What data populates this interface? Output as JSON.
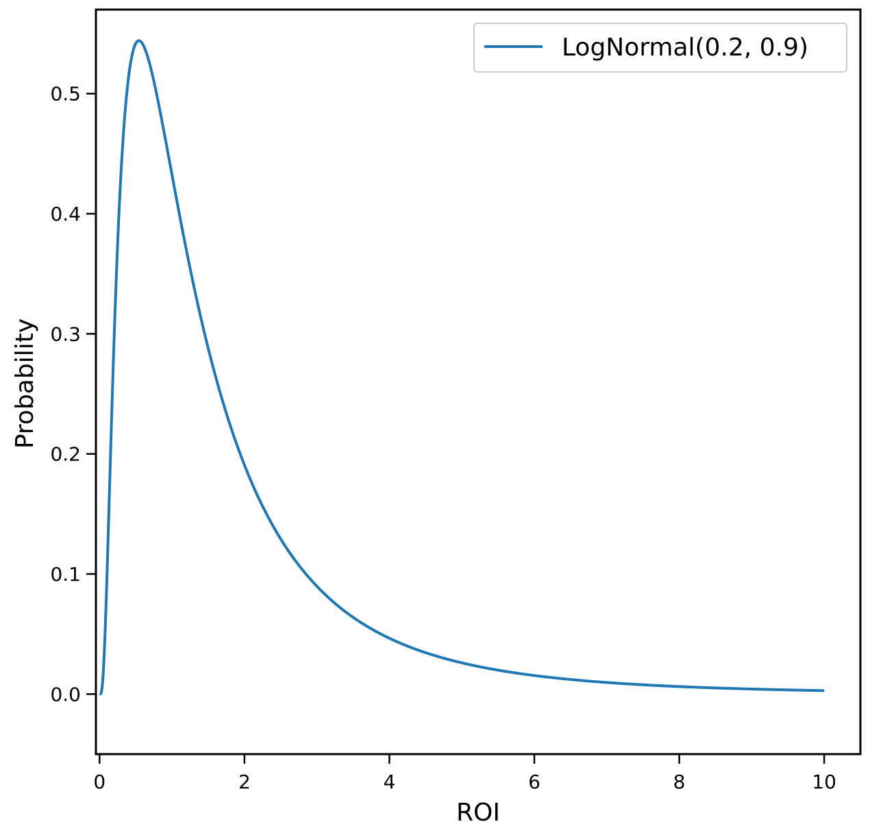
{
  "chart_data": {
    "type": "line",
    "title": "",
    "xlabel": "ROI",
    "ylabel": "Probability",
    "xlim": [
      -0.05,
      10.5
    ],
    "ylim": [
      -0.05,
      0.57
    ],
    "xticks": [
      0,
      2,
      4,
      6,
      8,
      10
    ],
    "xtick_labels": [
      "0",
      "2",
      "4",
      "6",
      "8",
      "10"
    ],
    "yticks": [
      0.0,
      0.1,
      0.2,
      0.3,
      0.4,
      0.5
    ],
    "ytick_labels": [
      "0.0",
      "0.1",
      "0.2",
      "0.3",
      "0.4",
      "0.5"
    ],
    "grid": false,
    "legend_position": "top-right",
    "series": [
      {
        "name": "LogNormal(0.2, 0.9)",
        "color": "#1f77b4",
        "distribution": {
          "family": "lognormal",
          "mu": 0.2,
          "sigma": 0.9
        },
        "x_range": [
          0,
          10
        ],
        "peak": {
          "x": 0.54,
          "y": 0.544
        }
      }
    ]
  }
}
